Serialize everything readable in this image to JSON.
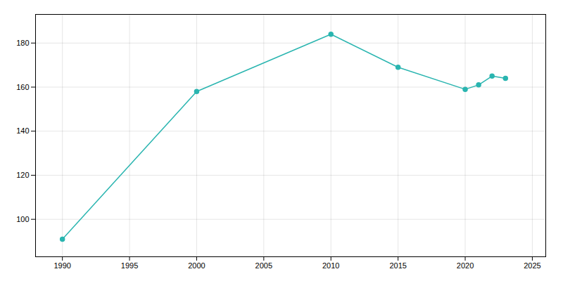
{
  "chart_data": {
    "type": "line",
    "x": [
      1990,
      2000,
      2010,
      2015,
      2020,
      2021,
      2022,
      2023
    ],
    "values": [
      91,
      158,
      184,
      169,
      159,
      161,
      165,
      164
    ],
    "color": "#2ab5b0",
    "marker": "circle",
    "xlim": [
      1988,
      2026
    ],
    "ylim": [
      83,
      193
    ],
    "xticks": [
      1990,
      1995,
      2000,
      2005,
      2010,
      2015,
      2020,
      2025
    ],
    "yticks": [
      100,
      120,
      140,
      160,
      180
    ],
    "grid": true
  }
}
